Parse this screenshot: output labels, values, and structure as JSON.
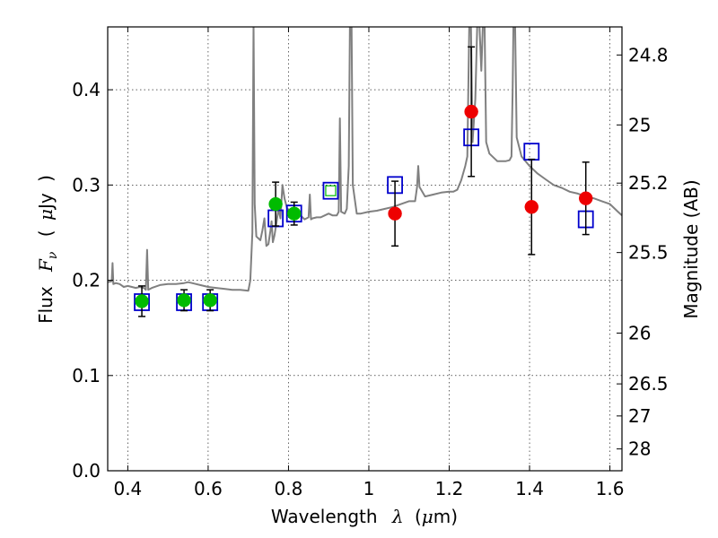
{
  "chart_data": {
    "type": "scatter",
    "xlabel": "Wavelength",
    "xlabel_symbol": "λ",
    "xlabel_unit_open": "(",
    "xlabel_unit_mu": "μ",
    "xlabel_unit_rest": "m)",
    "ylabel": "Flux",
    "ylabel_symbol": "F",
    "ylabel_subscript": "ν",
    "ylabel_unit_open": "(",
    "ylabel_unit_mu": "μ",
    "ylabel_unit_rest": "Jy",
    "ylabel_unit_close": ")",
    "y2label": "Magnitude (AB)",
    "xlim": [
      0.35,
      1.63
    ],
    "ylim": [
      0.0,
      0.466
    ],
    "grid": true,
    "x_ticks": [
      {
        "value": 0.4,
        "label": "0.4"
      },
      {
        "value": 0.6,
        "label": "0.6"
      },
      {
        "value": 0.8,
        "label": "0.8"
      },
      {
        "value": 1.0,
        "label": "1"
      },
      {
        "value": 1.2,
        "label": "1.2"
      },
      {
        "value": 1.4,
        "label": "1.4"
      },
      {
        "value": 1.6,
        "label": "1.6"
      }
    ],
    "y_ticks": [
      {
        "value": 0.0,
        "label": "0.0"
      },
      {
        "value": 0.1,
        "label": "0.1"
      },
      {
        "value": 0.2,
        "label": "0.2"
      },
      {
        "value": 0.3,
        "label": "0.3"
      },
      {
        "value": 0.4,
        "label": "0.4"
      }
    ],
    "magnitude_ticks": [
      {
        "mag": 24.8,
        "label": "24.8"
      },
      {
        "mag": 25.0,
        "label": "25"
      },
      {
        "mag": 25.2,
        "label": "25.2"
      },
      {
        "mag": 25.5,
        "label": "25.5"
      },
      {
        "mag": 26.0,
        "label": "26"
      },
      {
        "mag": 26.5,
        "label": "26.5"
      },
      {
        "mag": 27.0,
        "label": "27"
      },
      {
        "mag": 28.0,
        "label": "28"
      }
    ],
    "series": [
      {
        "name": "model-spectrum",
        "kind": "line",
        "color": "#808080",
        "points": [
          [
            0.35,
            0.198
          ],
          [
            0.36,
            0.199
          ],
          [
            0.362,
            0.218
          ],
          [
            0.364,
            0.196
          ],
          [
            0.37,
            0.197
          ],
          [
            0.38,
            0.196
          ],
          [
            0.39,
            0.193
          ],
          [
            0.4,
            0.194
          ],
          [
            0.41,
            0.193
          ],
          [
            0.42,
            0.192
          ],
          [
            0.43,
            0.193
          ],
          [
            0.44,
            0.192
          ],
          [
            0.445,
            0.19
          ],
          [
            0.448,
            0.232
          ],
          [
            0.451,
            0.19
          ],
          [
            0.46,
            0.192
          ],
          [
            0.48,
            0.195
          ],
          [
            0.5,
            0.196
          ],
          [
            0.52,
            0.196
          ],
          [
            0.54,
            0.197
          ],
          [
            0.55,
            0.198
          ],
          [
            0.56,
            0.197
          ],
          [
            0.58,
            0.195
          ],
          [
            0.6,
            0.193
          ],
          [
            0.62,
            0.192
          ],
          [
            0.64,
            0.191
          ],
          [
            0.66,
            0.19
          ],
          [
            0.68,
            0.19
          ],
          [
            0.7,
            0.189
          ],
          [
            0.705,
            0.2
          ],
          [
            0.71,
            0.25
          ],
          [
            0.713,
            0.47
          ],
          [
            0.716,
            0.28
          ],
          [
            0.72,
            0.246
          ],
          [
            0.73,
            0.242
          ],
          [
            0.735,
            0.252
          ],
          [
            0.74,
            0.265
          ],
          [
            0.745,
            0.236
          ],
          [
            0.75,
            0.238
          ],
          [
            0.755,
            0.252
          ],
          [
            0.758,
            0.262
          ],
          [
            0.761,
            0.24
          ],
          [
            0.765,
            0.247
          ],
          [
            0.77,
            0.26
          ],
          [
            0.775,
            0.275
          ],
          [
            0.78,
            0.265
          ],
          [
            0.785,
            0.3
          ],
          [
            0.79,
            0.286
          ],
          [
            0.8,
            0.27
          ],
          [
            0.81,
            0.272
          ],
          [
            0.82,
            0.27
          ],
          [
            0.83,
            0.268
          ],
          [
            0.84,
            0.264
          ],
          [
            0.85,
            0.266
          ],
          [
            0.853,
            0.29
          ],
          [
            0.856,
            0.264
          ],
          [
            0.86,
            0.265
          ],
          [
            0.87,
            0.266
          ],
          [
            0.88,
            0.266
          ],
          [
            0.89,
            0.268
          ],
          [
            0.9,
            0.27
          ],
          [
            0.91,
            0.268
          ],
          [
            0.92,
            0.268
          ],
          [
            0.925,
            0.272
          ],
          [
            0.928,
            0.37
          ],
          [
            0.931,
            0.272
          ],
          [
            0.94,
            0.27
          ],
          [
            0.945,
            0.275
          ],
          [
            0.95,
            0.32
          ],
          [
            0.953,
            0.47
          ],
          [
            0.957,
            0.47
          ],
          [
            0.96,
            0.3
          ],
          [
            0.97,
            0.27
          ],
          [
            0.98,
            0.27
          ],
          [
            1.0,
            0.272
          ],
          [
            1.02,
            0.273
          ],
          [
            1.04,
            0.275
          ],
          [
            1.06,
            0.277
          ],
          [
            1.08,
            0.28
          ],
          [
            1.1,
            0.283
          ],
          [
            1.115,
            0.283
          ],
          [
            1.12,
            0.298
          ],
          [
            1.123,
            0.32
          ],
          [
            1.126,
            0.298
          ],
          [
            1.14,
            0.288
          ],
          [
            1.16,
            0.29
          ],
          [
            1.18,
            0.292
          ],
          [
            1.2,
            0.293
          ],
          [
            1.21,
            0.293
          ],
          [
            1.22,
            0.295
          ],
          [
            1.23,
            0.305
          ],
          [
            1.24,
            0.32
          ],
          [
            1.245,
            0.33
          ],
          [
            1.25,
            0.47
          ],
          [
            1.254,
            0.47
          ],
          [
            1.258,
            0.345
          ],
          [
            1.265,
            0.39
          ],
          [
            1.27,
            0.47
          ],
          [
            1.275,
            0.47
          ],
          [
            1.28,
            0.42
          ],
          [
            1.284,
            0.47
          ],
          [
            1.288,
            0.47
          ],
          [
            1.292,
            0.345
          ],
          [
            1.3,
            0.333
          ],
          [
            1.32,
            0.325
          ],
          [
            1.34,
            0.325
          ],
          [
            1.35,
            0.326
          ],
          [
            1.355,
            0.33
          ],
          [
            1.358,
            0.4
          ],
          [
            1.36,
            0.47
          ],
          [
            1.364,
            0.47
          ],
          [
            1.368,
            0.35
          ],
          [
            1.38,
            0.33
          ],
          [
            1.4,
            0.32
          ],
          [
            1.42,
            0.312
          ],
          [
            1.44,
            0.306
          ],
          [
            1.46,
            0.3
          ],
          [
            1.48,
            0.297
          ],
          [
            1.5,
            0.293
          ],
          [
            1.52,
            0.291
          ],
          [
            1.54,
            0.288
          ],
          [
            1.56,
            0.286
          ],
          [
            1.58,
            0.283
          ],
          [
            1.6,
            0.28
          ],
          [
            1.62,
            0.272
          ],
          [
            1.63,
            0.268
          ]
        ]
      },
      {
        "name": "model-photometry",
        "kind": "open-square",
        "color": "#0000cc",
        "points": [
          [
            0.435,
            0.177
          ],
          [
            0.54,
            0.177
          ],
          [
            0.605,
            0.177
          ],
          [
            0.768,
            0.265
          ],
          [
            0.814,
            0.27
          ],
          [
            0.905,
            0.294
          ],
          [
            1.065,
            0.3
          ],
          [
            1.255,
            0.35
          ],
          [
            1.405,
            0.335
          ],
          [
            1.54,
            0.264
          ]
        ]
      },
      {
        "name": "optical-observed",
        "kind": "filled-circle",
        "color": "#00bb00",
        "points": [
          {
            "x": 0.435,
            "y": 0.178,
            "err": 0.016
          },
          {
            "x": 0.54,
            "y": 0.179,
            "err": 0.011
          },
          {
            "x": 0.605,
            "y": 0.179,
            "err": 0.011
          },
          {
            "x": 0.768,
            "y": 0.28,
            "err": 0.023
          },
          {
            "x": 0.814,
            "y": 0.27,
            "err": 0.012
          }
        ]
      },
      {
        "name": "optical-upper",
        "kind": "small-open-square",
        "color": "#00bb00",
        "points": [
          {
            "x": 0.905,
            "y": 0.294
          }
        ]
      },
      {
        "name": "nir-observed",
        "kind": "filled-circle",
        "color": "#ee0000",
        "points": [
          {
            "x": 1.065,
            "y": 0.27,
            "err": 0.034
          },
          {
            "x": 1.255,
            "y": 0.377,
            "err": 0.068
          },
          {
            "x": 1.405,
            "y": 0.277,
            "err": 0.05
          },
          {
            "x": 1.54,
            "y": 0.286,
            "err": 0.038
          }
        ]
      }
    ]
  }
}
